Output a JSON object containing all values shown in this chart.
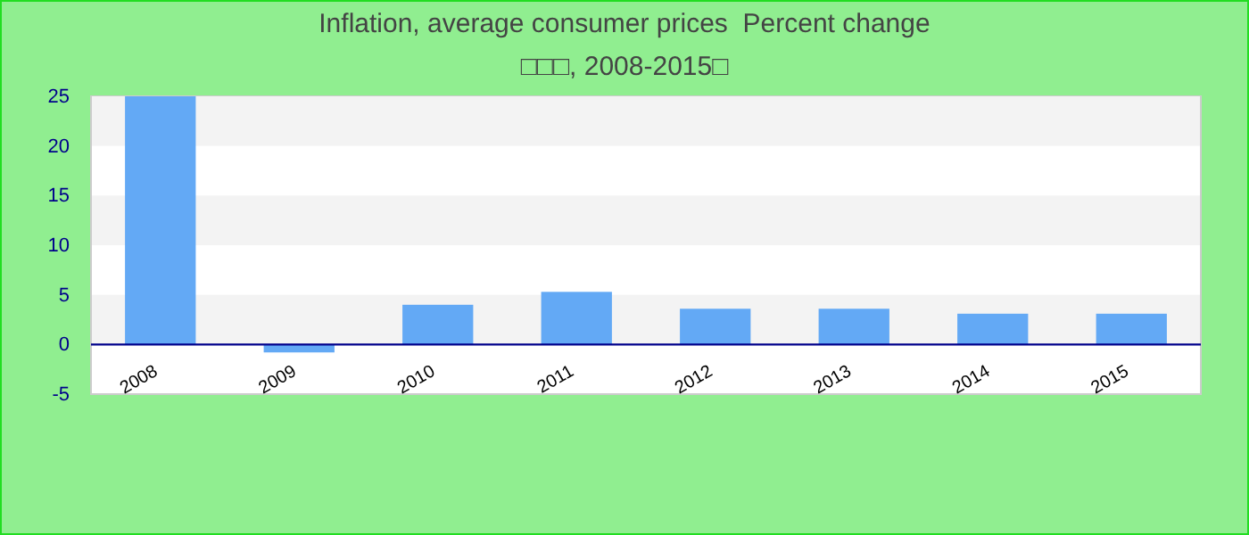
{
  "chart_data": {
    "type": "bar",
    "title": "Inflation, average consumer prices  Percent change",
    "subtitle": "□□□, 2008-2015□",
    "categories": [
      "2008",
      "2009",
      "2010",
      "2011",
      "2012",
      "2013",
      "2014",
      "2015"
    ],
    "values": [
      25,
      -0.8,
      4.0,
      5.3,
      3.6,
      3.6,
      3.1,
      3.1
    ],
    "color": "#63a9f5",
    "ylim": [
      -5,
      25
    ],
    "yticks": [
      -5,
      0,
      5,
      10,
      15,
      20,
      25
    ],
    "bands": [
      {
        "axis": "y",
        "from": 0,
        "to": 5,
        "color": "#f3f3f3"
      },
      {
        "axis": "y",
        "from": 10,
        "to": 15,
        "color": "#f3f3f3"
      },
      {
        "axis": "y",
        "from": 20,
        "to": 25,
        "color": "#f3f3f3"
      }
    ],
    "ref_lines": [
      {
        "axis": "y",
        "value": 0,
        "color": "#00008b"
      }
    ]
  }
}
